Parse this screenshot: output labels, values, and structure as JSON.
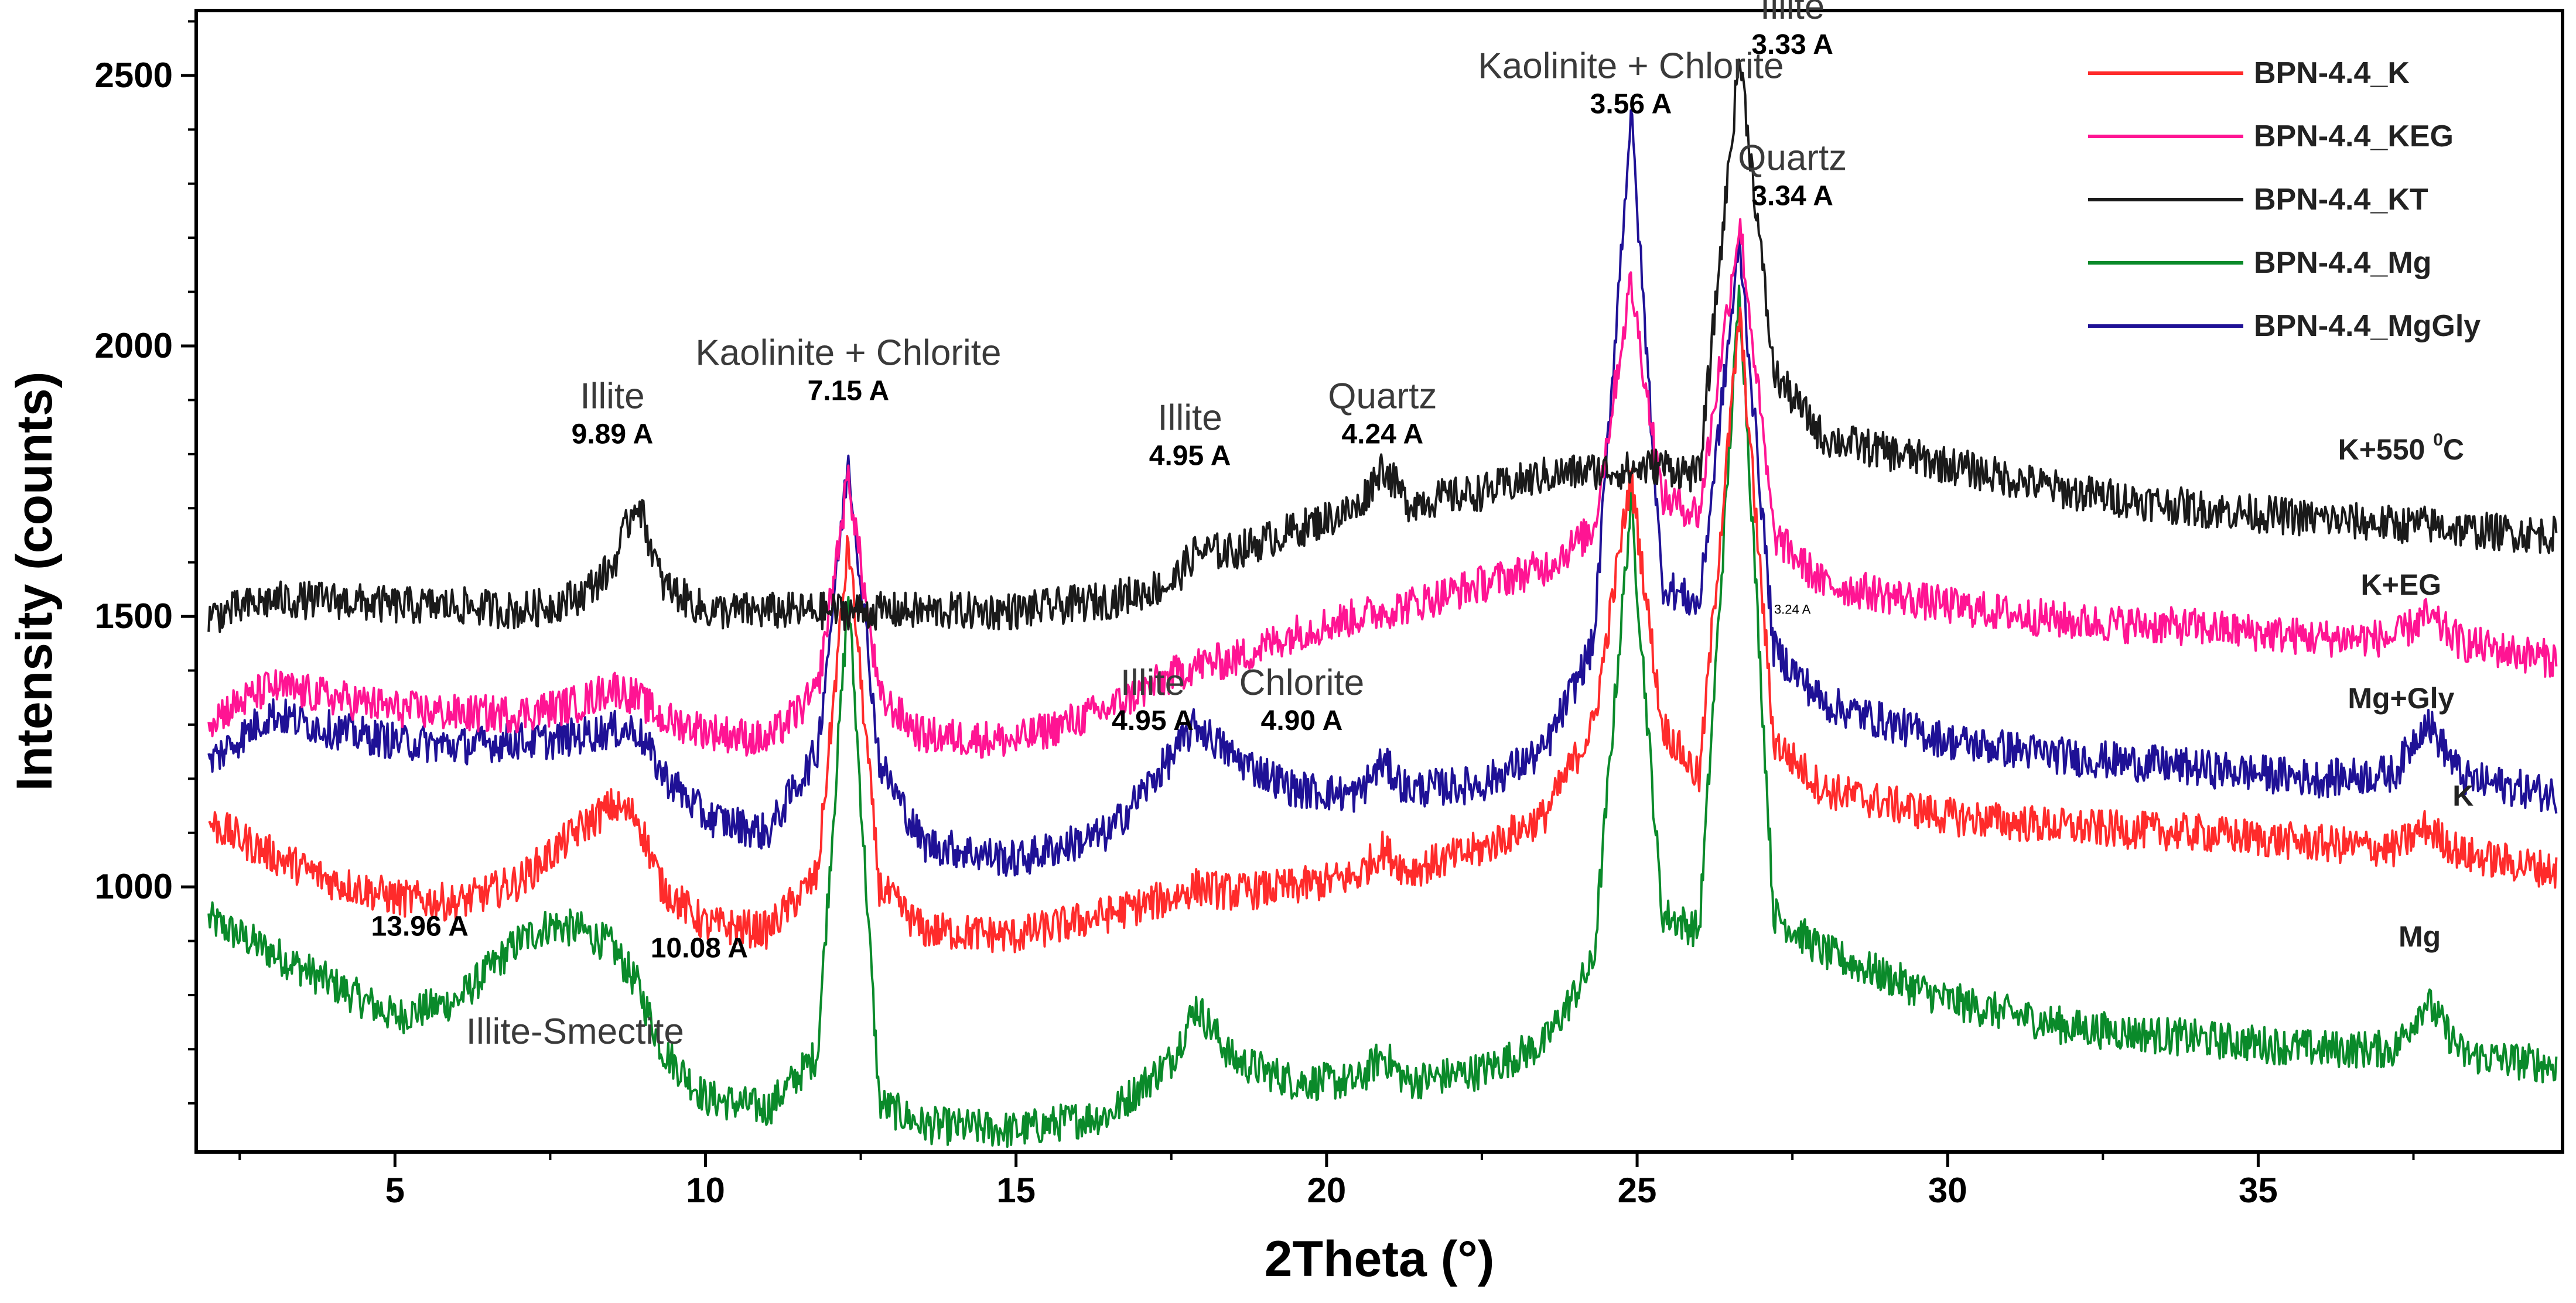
{
  "chart_data": {
    "type": "line",
    "xlabel": "2Theta (°)",
    "ylabel": "Intensity (counts)",
    "xlim": [
      1.8,
      39.9
    ],
    "ylim": [
      510,
      2620
    ],
    "xticks": [
      5,
      10,
      15,
      20,
      25,
      30,
      35
    ],
    "xtick_labels": [
      "5",
      "10",
      "15",
      "20",
      "25",
      "30",
      "35"
    ],
    "yticks": [
      1000,
      1500,
      2000,
      2500
    ],
    "ytick_labels": [
      "1000",
      "1500",
      "2000",
      "2500"
    ],
    "grid": false,
    "legend_position": "top-right",
    "x": [
      2,
      3,
      4,
      5,
      6,
      7,
      7.5,
      8,
      8.5,
      8.9,
      9.3,
      10,
      11,
      11.8,
      12.3,
      12.8,
      13.5,
      15,
      16.5,
      17.5,
      17.9,
      18.5,
      19.5,
      20.5,
      20.9,
      21.3,
      22.5,
      23.5,
      24.3,
      24.9,
      25.4,
      26,
      26.65,
      27.2,
      28,
      30,
      32,
      34,
      36,
      37.2,
      37.7,
      38.3,
      39.8
    ],
    "series": [
      {
        "name": "BPN-4.4_K",
        "color": "#ff2b2b",
        "values": [
          1120,
          1060,
          1010,
          980,
          970,
          1010,
          1060,
          1110,
          1150,
          1130,
          1000,
          930,
          920,
          1020,
          1640,
          1000,
          920,
          910,
          950,
          980,
          1000,
          990,
          1000,
          1020,
          1070,
          1030,
          1070,
          1130,
          1300,
          1760,
          1300,
          1200,
          2060,
          1270,
          1180,
          1130,
          1110,
          1100,
          1080,
          1070,
          1110,
          1060,
          1030
        ]
      },
      {
        "name": "BPN-4.4_KEG",
        "color": "#ff1493",
        "values": [
          1310,
          1370,
          1350,
          1330,
          1320,
          1320,
          1330,
          1340,
          1370,
          1350,
          1310,
          1290,
          1270,
          1360,
          1760,
          1350,
          1280,
          1270,
          1330,
          1390,
          1410,
          1420,
          1470,
          1500,
          1510,
          1520,
          1560,
          1590,
          1660,
          2120,
          1720,
          1690,
          2230,
          1650,
          1560,
          1520,
          1490,
          1480,
          1460,
          1460,
          1500,
          1450,
          1420
        ]
      },
      {
        "name": "BPN-4.4_KT",
        "color": "#1a1a1a",
        "values": [
          1500,
          1530,
          1530,
          1520,
          1520,
          1510,
          1520,
          1540,
          1590,
          1720,
          1560,
          1510,
          1510,
          1510,
          1510,
          1510,
          1510,
          1510,
          1530,
          1560,
          1620,
          1620,
          1660,
          1700,
          1780,
          1710,
          1730,
          1760,
          1770,
          1770,
          1780,
          1760,
          2540,
          1950,
          1830,
          1780,
          1730,
          1700,
          1680,
          1670,
          1670,
          1660,
          1650
        ]
      },
      {
        "name": "BPN-4.4_Mg",
        "color": "#0a8a2a",
        "values": [
          940,
          880,
          820,
          760,
          790,
          900,
          930,
          920,
          890,
          820,
          700,
          610,
          590,
          690,
          1540,
          600,
          560,
          550,
          580,
          680,
          780,
          680,
          640,
          640,
          690,
          640,
          660,
          710,
          860,
          1710,
          950,
          920,
          2110,
          950,
          880,
          790,
          740,
          720,
          700,
          700,
          790,
          690,
          670
        ]
      },
      {
        "name": "BPN-4.4_MgGly",
        "color": "#1f1196",
        "values": [
          1230,
          1320,
          1290,
          1270,
          1260,
          1270,
          1270,
          1280,
          1290,
          1290,
          1210,
          1130,
          1100,
          1250,
          1790,
          1230,
          1080,
          1050,
          1100,
          1240,
          1300,
          1240,
          1180,
          1170,
          1230,
          1180,
          1190,
          1250,
          1450,
          2430,
          1560,
          1520,
          2190,
          1440,
          1340,
          1270,
          1240,
          1220,
          1200,
          1210,
          1310,
          1200,
          1170
        ]
      }
    ],
    "legend": [
      "BPN-4.4_K",
      "BPN-4.4_KEG",
      "BPN-4.4_KT",
      "BPN-4.4_Mg",
      "BPN-4.4_MgGly"
    ],
    "trace_labels": [
      {
        "text": "K+550 ",
        "sup": "0",
        "unit": "C",
        "x": 37.3,
        "y": 1790
      },
      {
        "text": "K+EG",
        "x": 37.3,
        "y": 1540
      },
      {
        "text": "Mg+Gly",
        "x": 37.3,
        "y": 1330
      },
      {
        "text": "K",
        "x": 38.3,
        "y": 1150
      },
      {
        "text": "Mg",
        "x": 37.6,
        "y": 890
      }
    ],
    "annotations": [
      {
        "name": "Illite",
        "d": "9.89 A",
        "x": 8.5,
        "y": 1820
      },
      {
        "name": "Kaolinite + Chlorite",
        "d": "7.15 A",
        "x": 12.3,
        "y": 1900
      },
      {
        "name": "Illite",
        "d": "4.95 A",
        "x": 17.8,
        "y": 1780
      },
      {
        "name": "Quartz",
        "d": "4.24 A",
        "x": 20.9,
        "y": 1820
      },
      {
        "name": "Kaolinite + Chlorite",
        "d": "3.56 A",
        "x": 24.9,
        "y": 2430
      },
      {
        "name": "Illite",
        "d": "3.33 A",
        "x": 27.5,
        "y": 2540
      },
      {
        "name": "Quartz",
        "d": "3.34 A",
        "x": 27.5,
        "y": 2260
      },
      {
        "name": "Illite",
        "d": "4.95 A",
        "x": 17.2,
        "y": 1290
      },
      {
        "name": "Chlorite",
        "d": "4.90 A",
        "x": 19.6,
        "y": 1290
      },
      {
        "name": "",
        "d": "13.96 A",
        "x": 5.4,
        "y": 910
      },
      {
        "name": "",
        "d": "10.08 A",
        "x": 9.9,
        "y": 870
      },
      {
        "name": "Illite-Smectite",
        "d": "",
        "x": 7.9,
        "y": 710
      },
      {
        "name": "",
        "d": "3.24 A",
        "x": 27.5,
        "y": 1505,
        "small": true
      }
    ]
  }
}
